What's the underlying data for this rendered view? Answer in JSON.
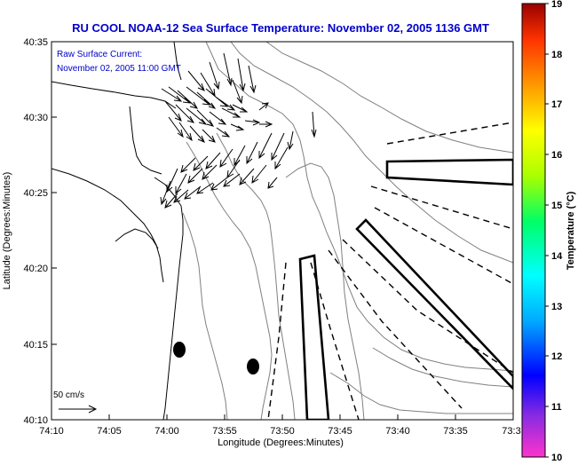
{
  "title": "RU COOL  NOAA-12  Sea Surface Temperature:  November 02, 2005 1136 GMT",
  "annotation": {
    "line1": "Raw Surface Current:",
    "line2": "November 02, 2005 11:00 GMT"
  },
  "scale_label": "50 cm/s",
  "x_axis": {
    "label": "Longitude (Degrees:Minutes)",
    "ticks": [
      "74:10",
      "74:05",
      "74:00",
      "73:55",
      "73:50",
      "73:45",
      "73:40",
      "73:35",
      "73:3"
    ]
  },
  "y_axis": {
    "label": "Latitude (Degrees:Minutes)",
    "ticks": [
      "40:35",
      "40:30",
      "40:25",
      "40:20",
      "40:15",
      "40:10"
    ]
  },
  "colorbar": {
    "label": "Temperature (°C)",
    "ticks": [
      "19",
      "18",
      "17",
      "16",
      "15",
      "14",
      "13",
      "12",
      "11",
      "10"
    ],
    "colors": [
      "#ff33cc",
      "#8a2be2",
      "#0000ff",
      "#00aaff",
      "#00ffff",
      "#00ff66",
      "#aaff00",
      "#ffff00",
      "#ff9900",
      "#ff3300",
      "#990000"
    ]
  },
  "colors": {
    "title": "#0000cc",
    "annotation": "#0000cc",
    "axis": "#000000",
    "contour": "#808080",
    "coast": "#000000"
  }
}
